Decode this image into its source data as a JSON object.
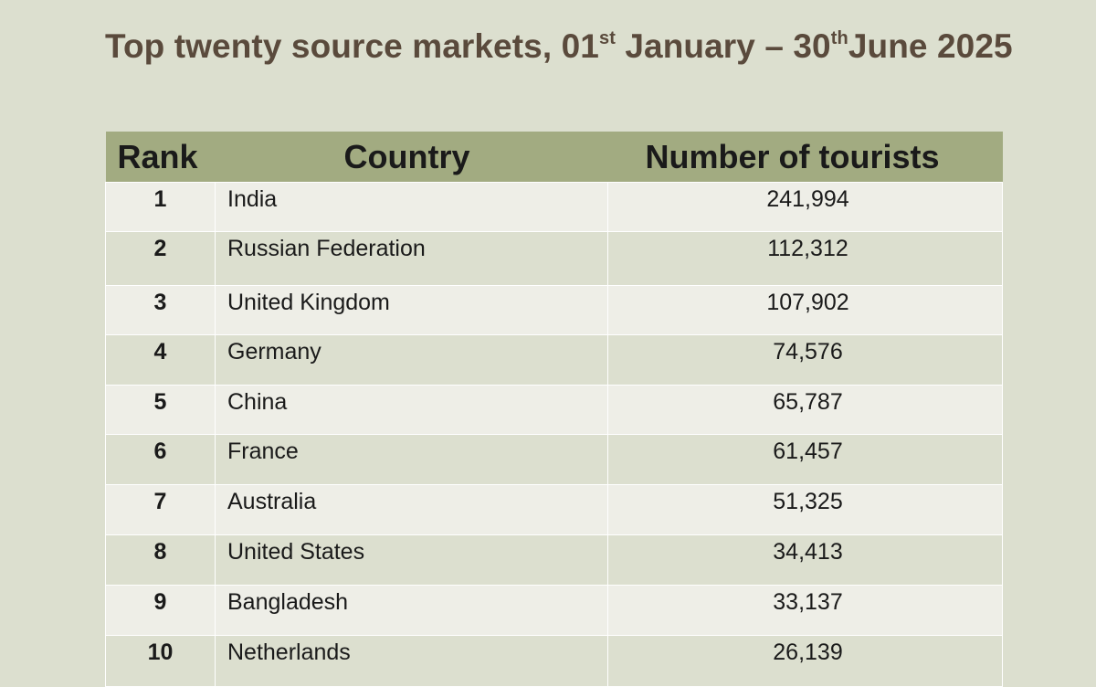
{
  "title": {
    "part1": "Top twenty source markets, 01",
    "sup1": "st",
    "part2": " January – 30",
    "sup2": "th",
    "part3": "June 2025"
  },
  "table": {
    "headers": {
      "rank": "Rank",
      "country": "Country",
      "tourists": "Number of tourists"
    },
    "rows": [
      {
        "rank": "1",
        "country": "India",
        "tourists": "241,994"
      },
      {
        "rank": "2",
        "country": "Russian Federation",
        "tourists": "112,312"
      },
      {
        "rank": "3",
        "country": "United Kingdom",
        "tourists": "107,902"
      },
      {
        "rank": "4",
        "country": "Germany",
        "tourists": "74,576"
      },
      {
        "rank": "5",
        "country": "China",
        "tourists": "65,787"
      },
      {
        "rank": "6",
        "country": "France",
        "tourists": "61,457"
      },
      {
        "rank": "7",
        "country": "Australia",
        "tourists": "51,325"
      },
      {
        "rank": "8",
        "country": "United States",
        "tourists": "34,413"
      },
      {
        "rank": "9",
        "country": "Bangladesh",
        "tourists": "33,137"
      },
      {
        "rank": "10",
        "country": "Netherlands",
        "tourists": "26,139"
      }
    ]
  }
}
